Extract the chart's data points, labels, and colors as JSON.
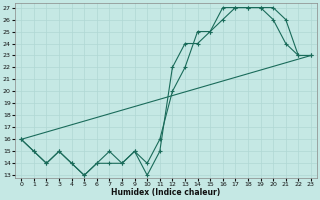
{
  "xlabel": "Humidex (Indice chaleur)",
  "bg_color": "#c5e8e4",
  "grid_color": "#b0d8d4",
  "line_color": "#1a6b5a",
  "line1_x": [
    0,
    1,
    2,
    3,
    4,
    5,
    6,
    7,
    8,
    9,
    10,
    11,
    12,
    13,
    14,
    15,
    16,
    17,
    18,
    19,
    20,
    21,
    22,
    23
  ],
  "line1_y": [
    16,
    15,
    14,
    15,
    14,
    13,
    14,
    14,
    14,
    15,
    13,
    15,
    22,
    24,
    24,
    25,
    27,
    27,
    27,
    27,
    26,
    24,
    23,
    23
  ],
  "line2_x": [
    0,
    1,
    2,
    3,
    4,
    5,
    6,
    7,
    8,
    9,
    10,
    11,
    12,
    13,
    14,
    15,
    16,
    17,
    18,
    19,
    20,
    21,
    22,
    23
  ],
  "line2_y": [
    16,
    15,
    14,
    15,
    14,
    13,
    14,
    15,
    14,
    15,
    14,
    16,
    20,
    22,
    25,
    25,
    26,
    27,
    27,
    27,
    27,
    26,
    23,
    23
  ],
  "line3_x": [
    0,
    23
  ],
  "line3_y": [
    16,
    23
  ],
  "xlim_min": -0.5,
  "xlim_max": 23.5,
  "ylim_min": 12.8,
  "ylim_max": 27.4,
  "xticks": [
    0,
    1,
    2,
    3,
    4,
    5,
    6,
    7,
    8,
    9,
    10,
    11,
    12,
    13,
    14,
    15,
    16,
    17,
    18,
    19,
    20,
    21,
    22,
    23
  ],
  "yticks": [
    13,
    14,
    15,
    16,
    17,
    18,
    19,
    20,
    21,
    22,
    23,
    24,
    25,
    26,
    27
  ],
  "xlabel_fontsize": 5.5,
  "tick_fontsize": 4.5
}
